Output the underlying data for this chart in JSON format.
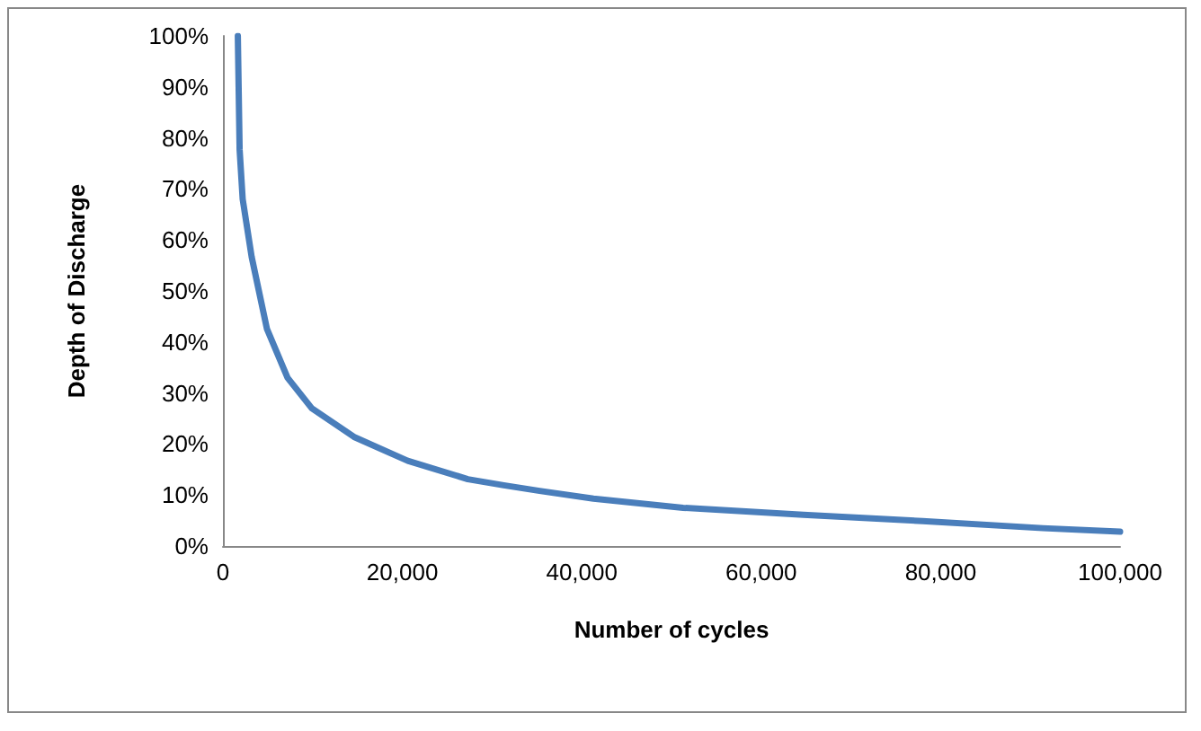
{
  "chart_data": {
    "type": "line",
    "xlabel": "Number of cycles",
    "ylabel": "Depth of Discharge",
    "series": [
      {
        "color": "#4a7ebb",
        "x": [
          1660,
          1860,
          2200,
          3200,
          4900,
          7200,
          9900,
          14600,
          20600,
          27300,
          31300,
          35300,
          41300,
          51300,
          64700,
          78000,
          91400,
          100000
        ],
        "values": [
          100,
          77.7,
          68,
          56.7,
          42.6,
          33,
          27,
          21.4,
          16.7,
          13.1,
          11.9,
          10.8,
          9.3,
          7.5,
          6.1,
          4.9,
          3.5,
          2.8
        ]
      }
    ],
    "xlim": [
      0,
      100000
    ],
    "xticks": [
      0,
      {
        "value": 20000,
        "label": "20,000"
      },
      {
        "value": 40000,
        "label": "40,000"
      },
      {
        "value": 60000,
        "label": "60,000"
      },
      {
        "value": 80000,
        "label": "80,000"
      },
      {
        "value": 100000,
        "label": "100,000"
      }
    ],
    "ylim": [
      0,
      100
    ],
    "yticks": [
      {
        "value": 0,
        "label": "0%"
      },
      {
        "value": 10,
        "label": "10%"
      },
      {
        "value": 20,
        "label": "20%"
      },
      {
        "value": 30,
        "label": "30%"
      },
      {
        "value": 40,
        "label": "40%"
      },
      {
        "value": 50,
        "label": "50%"
      },
      {
        "value": 60,
        "label": "60%"
      },
      {
        "value": 70,
        "label": "70%"
      },
      {
        "value": 80,
        "label": "80%"
      },
      {
        "value": 90,
        "label": "90%"
      },
      {
        "value": 100,
        "label": "100%"
      }
    ],
    "marker": "none",
    "line_style": "solid"
  }
}
